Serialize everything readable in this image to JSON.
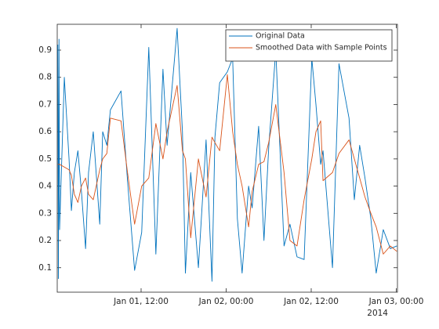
{
  "chart_data": {
    "type": "line",
    "x": [
      "2014-01-01T00:15",
      "2014-01-01T00:20",
      "2014-01-01T00:25",
      "2014-01-01T00:30",
      "2014-01-01T01:10",
      "2014-01-01T01:50",
      "2014-01-01T02:10",
      "2014-01-01T02:35",
      "2014-01-01T03:05",
      "2014-01-01T03:35",
      "2014-01-01T04:10",
      "2014-01-01T04:35",
      "2014-01-01T05:15",
      "2014-01-01T06:10",
      "2014-01-01T06:35",
      "2014-01-01T07:10",
      "2014-01-01T07:40",
      "2014-01-01T09:10",
      "2014-01-01T10:05",
      "2014-01-01T11:05",
      "2014-01-01T12:05",
      "2014-01-01T13:05",
      "2014-01-01T14:05",
      "2014-01-01T15:05",
      "2014-01-01T15:40",
      "2014-01-01T17:05",
      "2014-01-01T17:50",
      "2014-01-01T18:15",
      "2014-01-01T19:00",
      "2014-01-01T20:05",
      "2014-01-01T21:10",
      "2014-01-01T22:00",
      "2014-01-01T22:25",
      "2014-01-01T23:05",
      "2014-01-02T00:10",
      "2014-01-02T00:55",
      "2014-01-02T01:35",
      "2014-01-02T02:15",
      "2014-01-02T03:10",
      "2014-01-02T03:40",
      "2014-01-02T04:35",
      "2014-01-02T05:20",
      "2014-01-02T06:00",
      "2014-01-02T07:00",
      "2014-01-02T08:10",
      "2014-01-02T09:00",
      "2014-01-02T10:00",
      "2014-01-02T11:00",
      "2014-01-02T12:05",
      "2014-01-02T12:40",
      "2014-01-02T13:20",
      "2014-01-02T13:40",
      "2014-01-02T15:00",
      "2014-01-02T15:55",
      "2014-01-02T17:20",
      "2014-01-02T18:05",
      "2014-01-02T18:50",
      "2014-01-02T19:35",
      "2014-01-02T20:25",
      "2014-01-02T21:10",
      "2014-01-02T22:10",
      "2014-01-02T23:10",
      "2014-01-03T00:05"
    ],
    "series": [
      {
        "name": "Original Data",
        "color": "#0072bd",
        "values": [
          0.92,
          0.06,
          0.94,
          0.24,
          0.8,
          0.5,
          0.31,
          0.45,
          0.53,
          0.38,
          0.17,
          0.45,
          0.6,
          0.26,
          0.6,
          0.55,
          0.68,
          0.75,
          0.42,
          0.09,
          0.23,
          0.91,
          0.15,
          0.83,
          0.55,
          0.98,
          0.6,
          0.08,
          0.45,
          0.1,
          0.57,
          0.05,
          0.58,
          0.78,
          0.82,
          0.87,
          0.28,
          0.08,
          0.4,
          0.32,
          0.62,
          0.2,
          0.54,
          0.9,
          0.18,
          0.26,
          0.14,
          0.13,
          0.87,
          0.7,
          0.48,
          0.53,
          0.1,
          0.85,
          0.65,
          0.35,
          0.55,
          0.43,
          0.28,
          0.08,
          0.24,
          0.17,
          0.18
        ]
      },
      {
        "name": "Smoothed Data with Sample Points",
        "color": "#d95319",
        "values": [
          0.48,
          0.48,
          0.48,
          0.48,
          0.47,
          0.46,
          0.44,
          0.37,
          0.34,
          0.4,
          0.43,
          0.37,
          0.35,
          0.46,
          0.5,
          0.52,
          0.65,
          0.64,
          0.45,
          0.26,
          0.4,
          0.43,
          0.63,
          0.5,
          0.6,
          0.77,
          0.53,
          0.5,
          0.21,
          0.5,
          0.36,
          0.58,
          0.56,
          0.53,
          0.81,
          0.6,
          0.48,
          0.4,
          0.25,
          0.38,
          0.48,
          0.49,
          0.56,
          0.7,
          0.45,
          0.2,
          0.18,
          0.35,
          0.5,
          0.6,
          0.64,
          0.42,
          0.45,
          0.52,
          0.57,
          0.5,
          0.43,
          0.36,
          0.3,
          0.25,
          0.15,
          0.18,
          0.16
        ]
      }
    ],
    "xlim": [
      "2014-01-01T00:10",
      "2014-01-03T00:10"
    ],
    "xticks": [
      {
        "value": "2014-01-01T12:00",
        "label": "Jan 01, 12:00"
      },
      {
        "value": "2014-01-02T00:00",
        "label": "Jan 02, 00:00"
      },
      {
        "value": "2014-01-02T12:00",
        "label": "Jan 02, 12:00"
      },
      {
        "value": "2014-01-03T00:00",
        "label": "Jan 03, 00:00"
      }
    ],
    "x_secondary_label": "2014",
    "ylim": [
      0.01,
      0.995
    ],
    "yticks": [
      0.1,
      0.2,
      0.3,
      0.4,
      0.5,
      0.6,
      0.7,
      0.8,
      0.9
    ],
    "grid": false,
    "legend": "northeast"
  }
}
